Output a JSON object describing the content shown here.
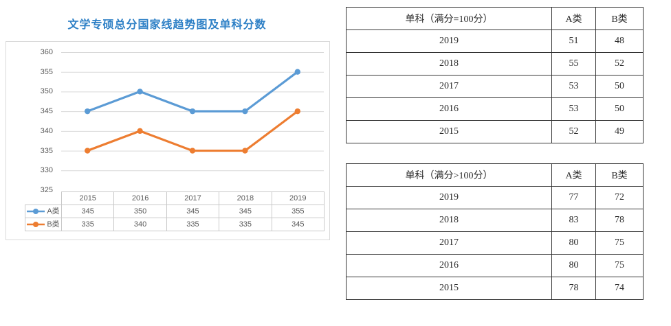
{
  "page": {
    "title": "文学专硕总分国家线趋势图及单科分数"
  },
  "colors": {
    "title": "#2E80C6",
    "grid": "#D9D9D9",
    "chart_text": "#595959",
    "chart_table_border": "#C8C8C8",
    "score_table_border": "#333333",
    "score_table_text": "#2B2B2B"
  },
  "chart_data": [
    {
      "type": "line",
      "title": "文学专硕总分国家线趋势图及单科分数",
      "categories": [
        "2015",
        "2016",
        "2017",
        "2018",
        "2019"
      ],
      "series": [
        {
          "name": "A类",
          "color": "#5B9BD5",
          "values": [
            345,
            350,
            345,
            345,
            355
          ]
        },
        {
          "name": "B类",
          "color": "#ED7D31",
          "values": [
            335,
            340,
            335,
            335,
            345
          ]
        }
      ],
      "ylim": [
        325,
        360
      ],
      "ytick_step": 5,
      "grid": true,
      "legend_position": "data-table-left",
      "data_table_shown": true
    },
    {
      "type": "table",
      "columns": [
        "单科（满分=100分）",
        "A类",
        "B类"
      ],
      "rows": [
        [
          "2019",
          51,
          48
        ],
        [
          "2018",
          55,
          52
        ],
        [
          "2017",
          53,
          50
        ],
        [
          "2016",
          53,
          50
        ],
        [
          "2015",
          52,
          49
        ]
      ]
    },
    {
      "type": "table",
      "columns": [
        "单科（满分>100分）",
        "A类",
        "B类"
      ],
      "rows": [
        [
          "2019",
          77,
          72
        ],
        [
          "2018",
          83,
          78
        ],
        [
          "2017",
          80,
          75
        ],
        [
          "2016",
          80,
          75
        ],
        [
          "2015",
          78,
          74
        ]
      ]
    }
  ]
}
